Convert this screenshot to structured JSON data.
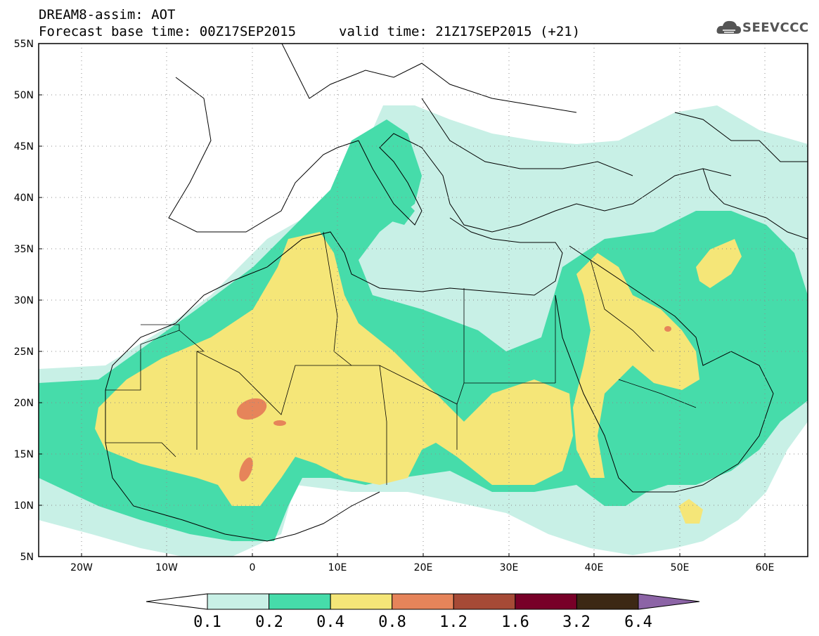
{
  "header": {
    "title_line1": "DREAM8-assim: AOT",
    "title_line2": "Forecast base time: 00Z17SEP2015",
    "valid_time": "valid time: 21Z17SEP2015 (+21)"
  },
  "logo": {
    "text": "SEEVCCC",
    "icon": "cloud-icon"
  },
  "map": {
    "lat_labels": [
      "55N",
      "50N",
      "45N",
      "40N",
      "35N",
      "30N",
      "25N",
      "20N",
      "15N",
      "10N",
      "5N"
    ],
    "lon_labels": [
      "20W",
      "10W",
      "0",
      "10E",
      "20E",
      "30E",
      "40E",
      "50E",
      "60E"
    ],
    "colors": {
      "c01": "#c8f0e6",
      "c02": "#46dcaa",
      "c04": "#f5e678",
      "c08": "#e6845a",
      "c12": "#a64a36",
      "c16": "#780028",
      "c32": "#3c2814",
      "c64": "#8c64a6"
    }
  },
  "colorbar": {
    "labels": [
      "0.1",
      "0.2",
      "0.4",
      "0.8",
      "1.2",
      "1.6",
      "3.2",
      "6.4"
    ],
    "colors": [
      "#c8f0e6",
      "#46dcaa",
      "#f5e678",
      "#e6845a",
      "#a64a36",
      "#780028",
      "#3c2814"
    ],
    "over_color": "#8c64a6",
    "under_color": "#ffffff"
  }
}
